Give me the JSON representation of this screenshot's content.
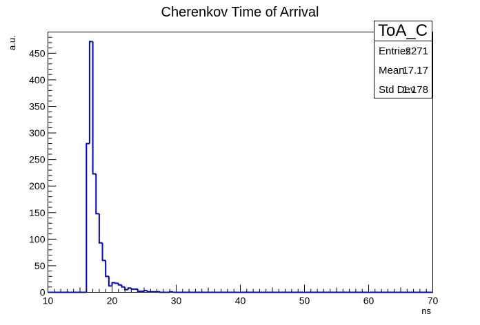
{
  "chart_data": {
    "type": "bar",
    "style": "step-histogram",
    "title": "Cherenkov Time of Arrival",
    "xlabel": "ns",
    "ylabel": "a.u.",
    "xlim": [
      10,
      70
    ],
    "ylim": [
      0,
      490
    ],
    "x_ticks": [
      10,
      20,
      30,
      40,
      50,
      60,
      70
    ],
    "y_ticks": [
      0,
      50,
      100,
      150,
      200,
      250,
      300,
      350,
      400,
      450
    ],
    "bin_width": 0.5,
    "grid": false,
    "line_color": "#0000cc",
    "bin_edges_start": 16,
    "values": [
      280,
      472,
      223,
      148,
      93,
      60,
      30,
      12,
      18,
      17,
      14,
      10,
      5,
      8,
      6,
      6,
      2,
      2,
      3,
      1,
      1,
      1,
      1,
      0,
      0,
      0,
      1
    ],
    "stats": {
      "name": "ToA_C",
      "rows": [
        {
          "label": "Entries",
          "value": "2271"
        },
        {
          "label": "Mean",
          "value": "17.17"
        },
        {
          "label": "Std Dev",
          "value": "1.178"
        }
      ]
    }
  }
}
